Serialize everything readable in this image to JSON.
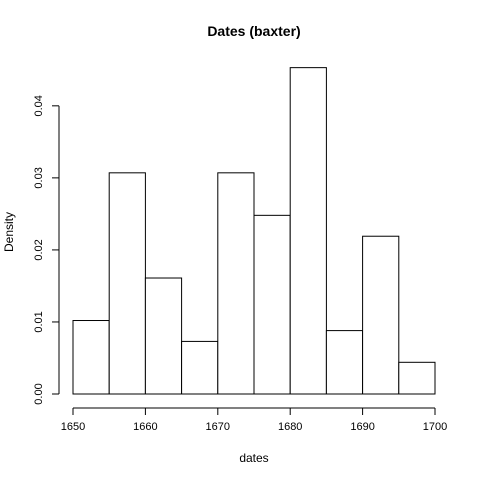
{
  "chart_data": {
    "type": "bar",
    "title": "Dates (baxter)",
    "xlabel": "dates",
    "ylabel": "Density",
    "xlim": [
      1650,
      1700
    ],
    "ylim": [
      0,
      0.045
    ],
    "x_ticks": [
      1650,
      1660,
      1670,
      1680,
      1690,
      1700
    ],
    "y_ticks": [
      "0.00",
      "0.01",
      "0.02",
      "0.03",
      "0.04"
    ],
    "bins": [
      {
        "start": 1650,
        "end": 1655,
        "value": 0.0102
      },
      {
        "start": 1655,
        "end": 1660,
        "value": 0.0307
      },
      {
        "start": 1660,
        "end": 1665,
        "value": 0.0161
      },
      {
        "start": 1665,
        "end": 1670,
        "value": 0.0073
      },
      {
        "start": 1670,
        "end": 1675,
        "value": 0.0307
      },
      {
        "start": 1675,
        "end": 1680,
        "value": 0.0248
      },
      {
        "start": 1680,
        "end": 1685,
        "value": 0.0453
      },
      {
        "start": 1685,
        "end": 1690,
        "value": 0.0088
      },
      {
        "start": 1690,
        "end": 1695,
        "value": 0.0219
      },
      {
        "start": 1695,
        "end": 1700,
        "value": 0.0044
      }
    ],
    "grid": false
  }
}
